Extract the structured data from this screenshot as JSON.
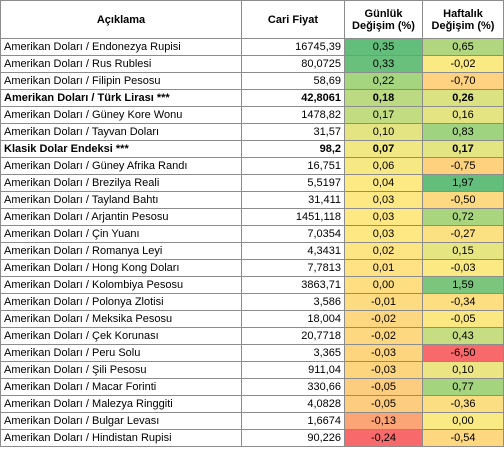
{
  "headers": {
    "desc": "Açıklama",
    "price": "Cari Fiyat",
    "daily_l1": "Günlük",
    "daily_l2": "Değişim (%)",
    "weekly_l1": "Haftalık",
    "weekly_l2": "Değişim (%)"
  },
  "rows": [
    {
      "label": "Amerikan Doları / Endonezya Rupisi",
      "price": "16745,39",
      "daily": "0,35",
      "weekly": "0,65",
      "daily_color": "#63be7b",
      "weekly_color": "#b1d680",
      "bold": false
    },
    {
      "label": "Amerikan Doları / Rus Rublesi",
      "price": "80,0725",
      "daily": "0,33",
      "weekly": "-0,02",
      "daily_color": "#69c07c",
      "weekly_color": "#fbea84",
      "bold": false
    },
    {
      "label": "Amerikan Doları / Filipin Pesosu",
      "price": "58,69",
      "daily": "0,22",
      "weekly": "-0,70",
      "daily_color": "#a6d57f",
      "weekly_color": "#fed280",
      "bold": false
    },
    {
      "label": "Amerikan Doları / Türk Lirası ***",
      "price": "42,8061",
      "daily": "0,18",
      "weekly": "0,26",
      "daily_color": "#bbda81",
      "weekly_color": "#dae281",
      "bold": true
    },
    {
      "label": "Amerikan Doları / Güney Kore Wonu",
      "price": "1478,82",
      "daily": "0,17",
      "weekly": "0,16",
      "daily_color": "#c1dc81",
      "weekly_color": "#e4e582",
      "bold": false
    },
    {
      "label": "Amerikan Doları / Tayvan Doları",
      "price": "31,57",
      "daily": "0,10",
      "weekly": "0,83",
      "daily_color": "#e4e582",
      "weekly_color": "#a0d37f",
      "bold": false
    },
    {
      "label": "Klasik Dolar Endeksi ***",
      "price": "98,2",
      "daily": "0,07",
      "weekly": "0,17",
      "daily_color": "#f1e883",
      "weekly_color": "#e3e482",
      "bold": true
    },
    {
      "label": "Amerikan Doları / Güney Afrika Randı",
      "price": "16,751",
      "daily": "0,06",
      "weekly": "-0,75",
      "daily_color": "#f6e983",
      "weekly_color": "#fed17f",
      "bold": false
    },
    {
      "label": "Amerikan Doları / Brezilya Reali",
      "price": "5,5197",
      "daily": "0,04",
      "weekly": "1,97",
      "daily_color": "#fdea84",
      "weekly_color": "#63be7b",
      "bold": false
    },
    {
      "label": "Amerikan Doları / Tayland Bahtı",
      "price": "31,411",
      "daily": "0,03",
      "weekly": "-0,50",
      "daily_color": "#fee883",
      "weekly_color": "#fdd981",
      "bold": false
    },
    {
      "label": "Amerikan Doları / Arjantin Pesosu",
      "price": "1451,118",
      "daily": "0,03",
      "weekly": "0,72",
      "daily_color": "#fee883",
      "weekly_color": "#aad57f",
      "bold": false
    },
    {
      "label": "Amerikan Doları / Çin Yuanı",
      "price": "7,0354",
      "daily": "0,03",
      "weekly": "-0,27",
      "daily_color": "#fee883",
      "weekly_color": "#fce182",
      "bold": false
    },
    {
      "label": "Amerikan Doları / Romanya Leyi",
      "price": "4,3431",
      "daily": "0,02",
      "weekly": "0,15",
      "daily_color": "#fee583",
      "weekly_color": "#e5e582",
      "bold": false
    },
    {
      "label": "Amerikan Doları / Hong Kong Doları",
      "price": "7,7813",
      "daily": "0,01",
      "weekly": "-0,03",
      "daily_color": "#fee283",
      "weekly_color": "#fbe983",
      "bold": false
    },
    {
      "label": "Amerikan Doları / Kolombiya Pesosu",
      "price": "3863,71",
      "daily": "0,00",
      "weekly": "1,59",
      "daily_color": "#fddf82",
      "weekly_color": "#7bc57d",
      "bold": false
    },
    {
      "label": "Amerikan Doları / Polonya Zlotisi",
      "price": "3,586",
      "daily": "-0,01",
      "weekly": "-0,34",
      "daily_color": "#fddb81",
      "weekly_color": "#fddf82",
      "bold": false
    },
    {
      "label": "Amerikan Doları / Meksika Pesosu",
      "price": "18,004",
      "daily": "-0,02",
      "weekly": "-0,05",
      "daily_color": "#fdd880",
      "weekly_color": "#fbe883",
      "bold": false
    },
    {
      "label": "Amerikan Doları / Çek Korunası",
      "price": "20,7718",
      "daily": "-0,02",
      "weekly": "0,43",
      "daily_color": "#fdd880",
      "weekly_color": "#c7dd81",
      "bold": false
    },
    {
      "label": "Amerikan Doları / Peru Solu",
      "price": "3,365",
      "daily": "-0,03",
      "weekly": "-6,50",
      "daily_color": "#fdd57f",
      "weekly_color": "#f8696b",
      "bold": false
    },
    {
      "label": "Amerikan Doları / Şili Pesosu",
      "price": "911,04",
      "daily": "-0,03",
      "weekly": "0,10",
      "daily_color": "#fdd57f",
      "weekly_color": "#ebe683",
      "bold": false
    },
    {
      "label": "Amerikan Doları / Macar Forinti",
      "price": "330,66",
      "daily": "-0,05",
      "weekly": "0,77",
      "daily_color": "#fccd7e",
      "weekly_color": "#a5d47f",
      "bold": false
    },
    {
      "label": "Amerikan Doları / Malezya Ringgiti",
      "price": "4,0828",
      "daily": "-0,05",
      "weekly": "-0,36",
      "daily_color": "#fccd7e",
      "weekly_color": "#fcde82",
      "bold": false
    },
    {
      "label": "Amerikan Doları / Bulgar Levası",
      "price": "1,6674",
      "daily": "-0,13",
      "weekly": "0,00",
      "daily_color": "#fba476",
      "weekly_color": "#f9ea84",
      "bold": false
    },
    {
      "label": "Amerikan Doları / Hindistan Rupisi",
      "price": "90,226",
      "daily": "-0,24",
      "weekly": "-0,54",
      "daily_color": "#f8696b",
      "weekly_color": "#fdd881",
      "bold": false
    }
  ]
}
